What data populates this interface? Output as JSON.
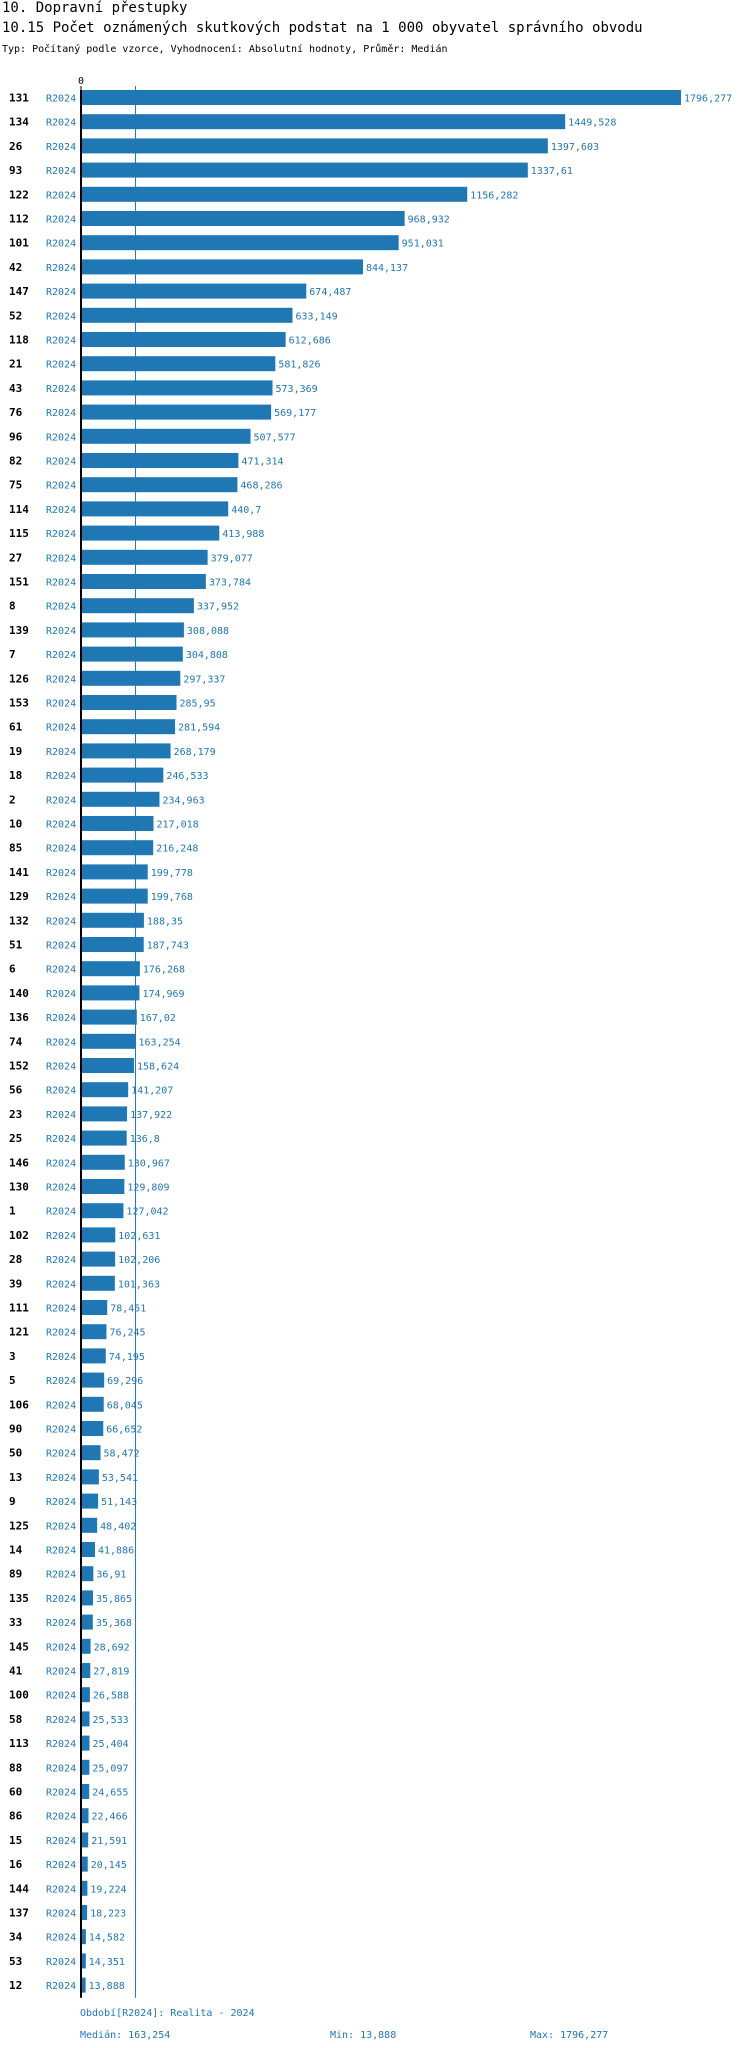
{
  "header": {
    "title": "10. Dopravní přestupky",
    "subtitle": "10.15 Počet oznámených skutkových podstat na 1 000 obyvatel správního obvodu",
    "info": "Typ: Počítaný podle vzorce, Vyhodnocení: Absolutní hodnoty, Průměr: Medián"
  },
  "footer": {
    "period": "Období[R2024]: Realita - 2024",
    "median": "Medián: 163,254",
    "min": "Min: 13,888",
    "max": "Max: 1796,277"
  },
  "colors": {
    "bar": "#1f77b4",
    "label": "#1f77b4",
    "axis": "#000000"
  },
  "chart_data": {
    "type": "bar",
    "orientation": "horizontal",
    "axis_zero_label": "0",
    "median_value": 163.254,
    "xlim": [
      0,
      1796.277
    ],
    "rows": [
      {
        "id": "131",
        "series": "R2024",
        "value": 1796.277,
        "label": "1796,277"
      },
      {
        "id": "134",
        "series": "R2024",
        "value": 1449.528,
        "label": "1449,528"
      },
      {
        "id": "26",
        "series": "R2024",
        "value": 1397.603,
        "label": "1397,603"
      },
      {
        "id": "93",
        "series": "R2024",
        "value": 1337.61,
        "label": "1337,61"
      },
      {
        "id": "122",
        "series": "R2024",
        "value": 1156.282,
        "label": "1156,282"
      },
      {
        "id": "112",
        "series": "R2024",
        "value": 968.932,
        "label": "968,932"
      },
      {
        "id": "101",
        "series": "R2024",
        "value": 951.031,
        "label": "951,031"
      },
      {
        "id": "42",
        "series": "R2024",
        "value": 844.137,
        "label": "844,137"
      },
      {
        "id": "147",
        "series": "R2024",
        "value": 674.487,
        "label": "674,487"
      },
      {
        "id": "52",
        "series": "R2024",
        "value": 633.149,
        "label": "633,149"
      },
      {
        "id": "118",
        "series": "R2024",
        "value": 612.686,
        "label": "612,686"
      },
      {
        "id": "21",
        "series": "R2024",
        "value": 581.826,
        "label": "581,826"
      },
      {
        "id": "43",
        "series": "R2024",
        "value": 573.369,
        "label": "573,369"
      },
      {
        "id": "76",
        "series": "R2024",
        "value": 569.177,
        "label": "569,177"
      },
      {
        "id": "96",
        "series": "R2024",
        "value": 507.577,
        "label": "507,577"
      },
      {
        "id": "82",
        "series": "R2024",
        "value": 471.314,
        "label": "471,314"
      },
      {
        "id": "75",
        "series": "R2024",
        "value": 468.286,
        "label": "468,286"
      },
      {
        "id": "114",
        "series": "R2024",
        "value": 440.7,
        "label": "440,7"
      },
      {
        "id": "115",
        "series": "R2024",
        "value": 413.988,
        "label": "413,988"
      },
      {
        "id": "27",
        "series": "R2024",
        "value": 379.077,
        "label": "379,077"
      },
      {
        "id": "151",
        "series": "R2024",
        "value": 373.784,
        "label": "373,784"
      },
      {
        "id": "8",
        "series": "R2024",
        "value": 337.952,
        "label": "337,952"
      },
      {
        "id": "139",
        "series": "R2024",
        "value": 308.088,
        "label": "308,088"
      },
      {
        "id": "7",
        "series": "R2024",
        "value": 304.808,
        "label": "304,808"
      },
      {
        "id": "126",
        "series": "R2024",
        "value": 297.337,
        "label": "297,337"
      },
      {
        "id": "153",
        "series": "R2024",
        "value": 285.95,
        "label": "285,95"
      },
      {
        "id": "61",
        "series": "R2024",
        "value": 281.594,
        "label": "281,594"
      },
      {
        "id": "19",
        "series": "R2024",
        "value": 268.179,
        "label": "268,179"
      },
      {
        "id": "18",
        "series": "R2024",
        "value": 246.533,
        "label": "246,533"
      },
      {
        "id": "2",
        "series": "R2024",
        "value": 234.963,
        "label": "234,963"
      },
      {
        "id": "10",
        "series": "R2024",
        "value": 217.018,
        "label": "217,018"
      },
      {
        "id": "85",
        "series": "R2024",
        "value": 216.248,
        "label": "216,248"
      },
      {
        "id": "141",
        "series": "R2024",
        "value": 199.778,
        "label": "199,778"
      },
      {
        "id": "129",
        "series": "R2024",
        "value": 199.768,
        "label": "199,768"
      },
      {
        "id": "132",
        "series": "R2024",
        "value": 188.35,
        "label": "188,35"
      },
      {
        "id": "51",
        "series": "R2024",
        "value": 187.743,
        "label": "187,743"
      },
      {
        "id": "6",
        "series": "R2024",
        "value": 176.268,
        "label": "176,268"
      },
      {
        "id": "140",
        "series": "R2024",
        "value": 174.969,
        "label": "174,969"
      },
      {
        "id": "136",
        "series": "R2024",
        "value": 167.02,
        "label": "167,02"
      },
      {
        "id": "74",
        "series": "R2024",
        "value": 163.254,
        "label": "163,254"
      },
      {
        "id": "152",
        "series": "R2024",
        "value": 158.624,
        "label": "158,624"
      },
      {
        "id": "56",
        "series": "R2024",
        "value": 141.207,
        "label": "141,207"
      },
      {
        "id": "23",
        "series": "R2024",
        "value": 137.922,
        "label": "137,922"
      },
      {
        "id": "25",
        "series": "R2024",
        "value": 136.8,
        "label": "136,8"
      },
      {
        "id": "146",
        "series": "R2024",
        "value": 130.967,
        "label": "130,967"
      },
      {
        "id": "130",
        "series": "R2024",
        "value": 129.809,
        "label": "129,809"
      },
      {
        "id": "1",
        "series": "R2024",
        "value": 127.042,
        "label": "127,042"
      },
      {
        "id": "102",
        "series": "R2024",
        "value": 102.631,
        "label": "102,631"
      },
      {
        "id": "28",
        "series": "R2024",
        "value": 102.206,
        "label": "102,206"
      },
      {
        "id": "39",
        "series": "R2024",
        "value": 101.363,
        "label": "101,363"
      },
      {
        "id": "111",
        "series": "R2024",
        "value": 78.451,
        "label": "78,451"
      },
      {
        "id": "121",
        "series": "R2024",
        "value": 76.245,
        "label": "76,245"
      },
      {
        "id": "3",
        "series": "R2024",
        "value": 74.195,
        "label": "74,195"
      },
      {
        "id": "5",
        "series": "R2024",
        "value": 69.296,
        "label": "69,296"
      },
      {
        "id": "106",
        "series": "R2024",
        "value": 68.045,
        "label": "68,045"
      },
      {
        "id": "90",
        "series": "R2024",
        "value": 66.652,
        "label": "66,652"
      },
      {
        "id": "50",
        "series": "R2024",
        "value": 58.472,
        "label": "58,472"
      },
      {
        "id": "13",
        "series": "R2024",
        "value": 53.541,
        "label": "53,541"
      },
      {
        "id": "9",
        "series": "R2024",
        "value": 51.143,
        "label": "51,143"
      },
      {
        "id": "125",
        "series": "R2024",
        "value": 48.402,
        "label": "48,402"
      },
      {
        "id": "14",
        "series": "R2024",
        "value": 41.886,
        "label": "41,886"
      },
      {
        "id": "89",
        "series": "R2024",
        "value": 36.91,
        "label": "36,91"
      },
      {
        "id": "135",
        "series": "R2024",
        "value": 35.865,
        "label": "35,865"
      },
      {
        "id": "33",
        "series": "R2024",
        "value": 35.368,
        "label": "35,368"
      },
      {
        "id": "145",
        "series": "R2024",
        "value": 28.692,
        "label": "28,692"
      },
      {
        "id": "41",
        "series": "R2024",
        "value": 27.819,
        "label": "27,819"
      },
      {
        "id": "100",
        "series": "R2024",
        "value": 26.588,
        "label": "26,588"
      },
      {
        "id": "58",
        "series": "R2024",
        "value": 25.533,
        "label": "25,533"
      },
      {
        "id": "113",
        "series": "R2024",
        "value": 25.404,
        "label": "25,404"
      },
      {
        "id": "88",
        "series": "R2024",
        "value": 25.097,
        "label": "25,097"
      },
      {
        "id": "60",
        "series": "R2024",
        "value": 24.655,
        "label": "24,655"
      },
      {
        "id": "86",
        "series": "R2024",
        "value": 22.466,
        "label": "22,466"
      },
      {
        "id": "15",
        "series": "R2024",
        "value": 21.591,
        "label": "21,591"
      },
      {
        "id": "16",
        "series": "R2024",
        "value": 20.145,
        "label": "20,145"
      },
      {
        "id": "144",
        "series": "R2024",
        "value": 19.224,
        "label": "19,224"
      },
      {
        "id": "137",
        "series": "R2024",
        "value": 18.223,
        "label": "18,223"
      },
      {
        "id": "34",
        "series": "R2024",
        "value": 14.582,
        "label": "14,582"
      },
      {
        "id": "53",
        "series": "R2024",
        "value": 14.351,
        "label": "14,351"
      },
      {
        "id": "12",
        "series": "R2024",
        "value": 13.888,
        "label": "13,888"
      }
    ]
  }
}
